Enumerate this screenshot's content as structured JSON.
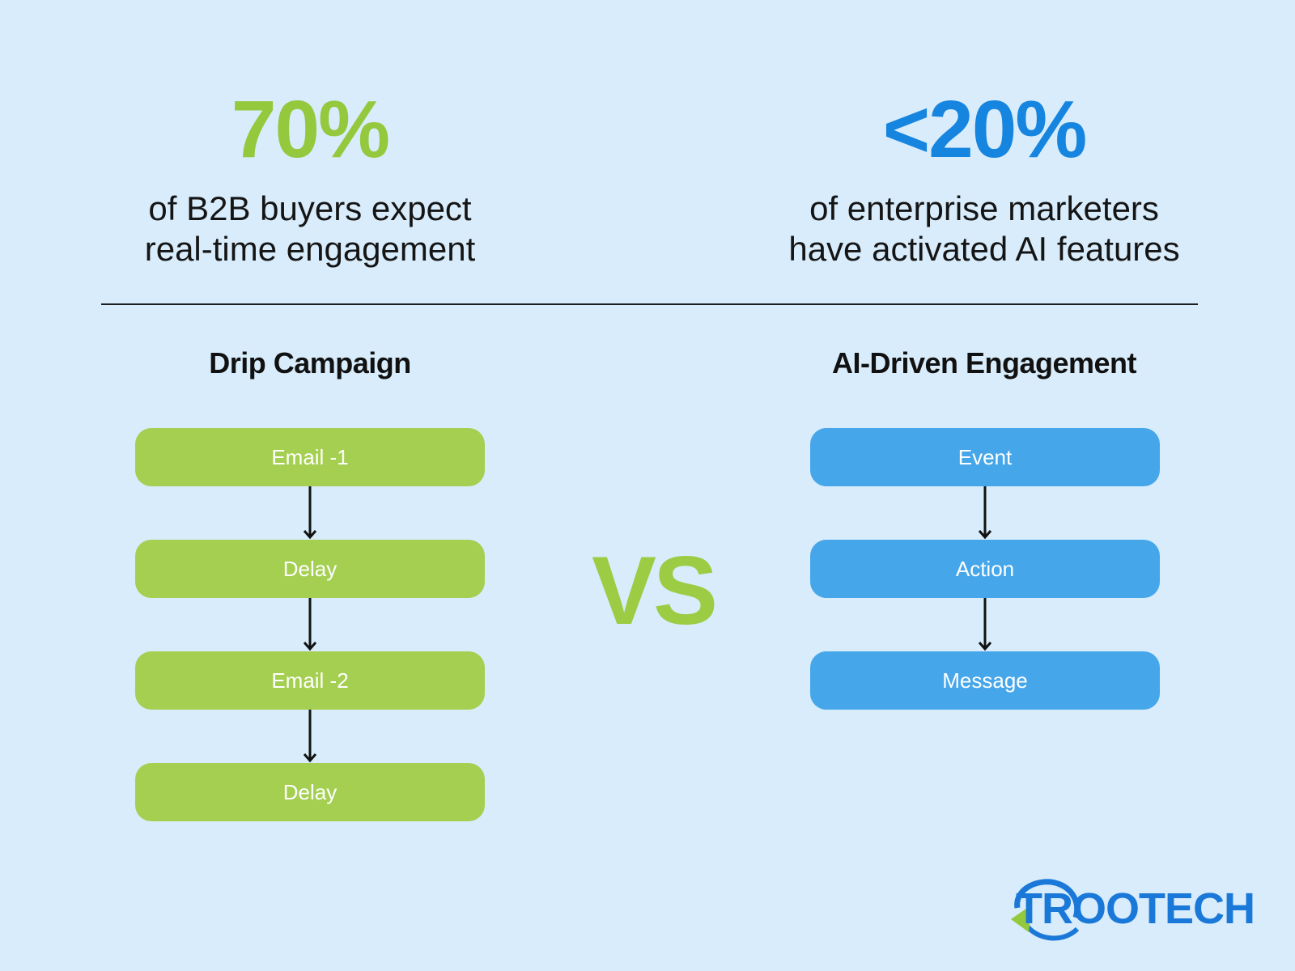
{
  "colors": {
    "background": "#d8ecfb",
    "green": "#a4cf51",
    "green_text": "#94c83d",
    "blue": "#46a6ea",
    "blue_text": "#1585df",
    "divider": "#1d1d1d"
  },
  "stats": [
    {
      "value": "70%",
      "line1": "of B2B buyers expect",
      "line2": "real-time engagement"
    },
    {
      "value": "<20%",
      "line1": "of enterprise marketers",
      "line2": "have activated AI features"
    }
  ],
  "flows": [
    {
      "title": "Drip Campaign",
      "steps": [
        "Email -1",
        "Delay",
        "Email -2",
        "Delay"
      ]
    },
    {
      "title": "AI-Driven Engagement",
      "steps": [
        "Event",
        "Action",
        "Message"
      ]
    }
  ],
  "vs_label": "VS",
  "logo": {
    "text": "TROOTECH",
    "icons": [
      "swoosh-icon"
    ]
  }
}
